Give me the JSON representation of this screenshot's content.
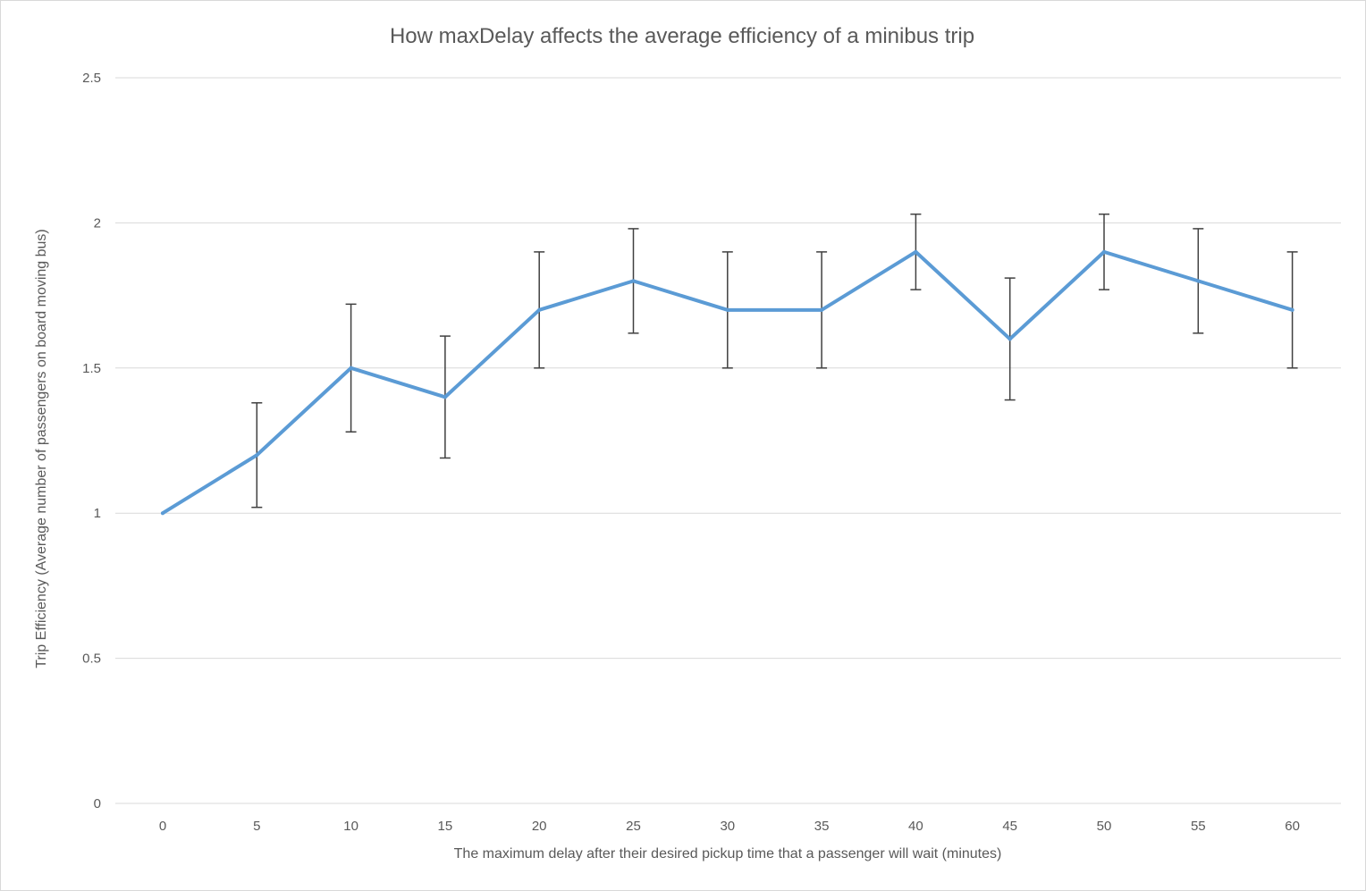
{
  "chart_data": {
    "type": "line",
    "title": "How maxDelay affects the average efficiency of a minibus trip",
    "xlabel": "The maximum delay after their desired pickup time that a passenger will wait (minutes)",
    "ylabel": "Trip Efficiency (Average number of passengers on board moving bus)",
    "categories": [
      "0",
      "5",
      "10",
      "15",
      "20",
      "25",
      "30",
      "35",
      "40",
      "45",
      "50",
      "55",
      "60"
    ],
    "series": [
      {
        "values": [
          1.0,
          1.2,
          1.5,
          1.4,
          1.7,
          1.8,
          1.7,
          1.7,
          1.9,
          1.6,
          1.9,
          1.8,
          1.7
        ],
        "error_low": [
          1.0,
          1.02,
          1.28,
          1.19,
          1.5,
          1.62,
          1.5,
          1.5,
          1.77,
          1.39,
          1.77,
          1.62,
          1.5
        ],
        "error_high": [
          1.0,
          1.38,
          1.72,
          1.61,
          1.9,
          1.98,
          1.9,
          1.9,
          2.03,
          1.81,
          2.03,
          1.98,
          1.9
        ],
        "color": "#5b9bd5"
      }
    ],
    "y_ticks": [
      "0",
      "0.5",
      "1",
      "1.5",
      "2",
      "2.5"
    ],
    "ylim": [
      0,
      2.5
    ],
    "grid": true,
    "legend": "none",
    "error_bar_color": "#404040",
    "grid_color": "#d9d9d9",
    "text_color": "#595959"
  }
}
